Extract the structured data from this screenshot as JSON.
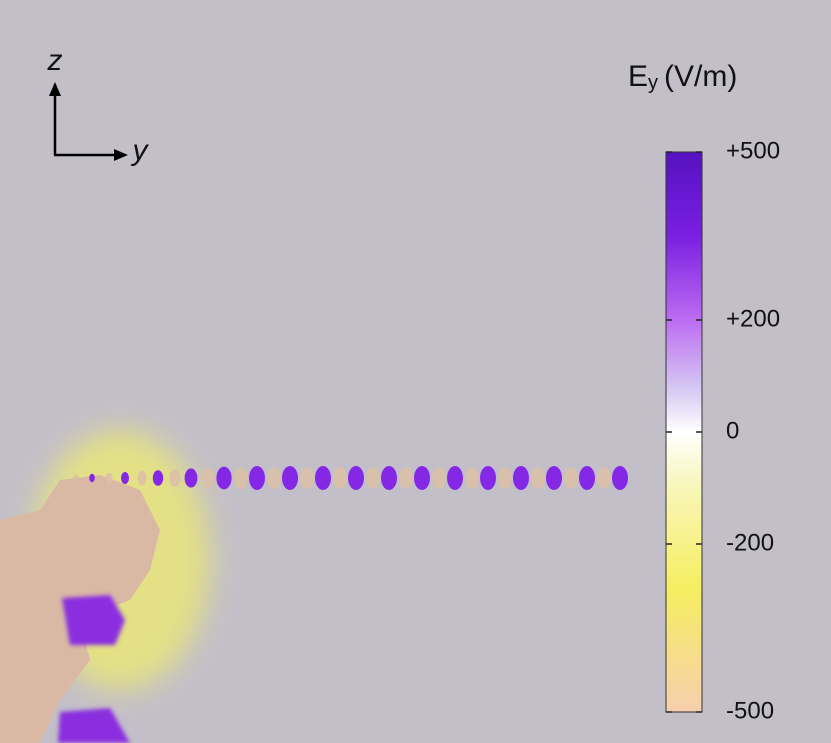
{
  "axes": {
    "vertical": "z",
    "horizontal": "y"
  },
  "colorbar": {
    "title": "E",
    "subscript": "y",
    "unit": "(V/m)",
    "lim": [
      -500,
      500
    ],
    "ticks": [
      {
        "value": 500,
        "label": "+500"
      },
      {
        "value": 200,
        "label": "+200"
      },
      0,
      -200,
      -500
    ]
  }
}
